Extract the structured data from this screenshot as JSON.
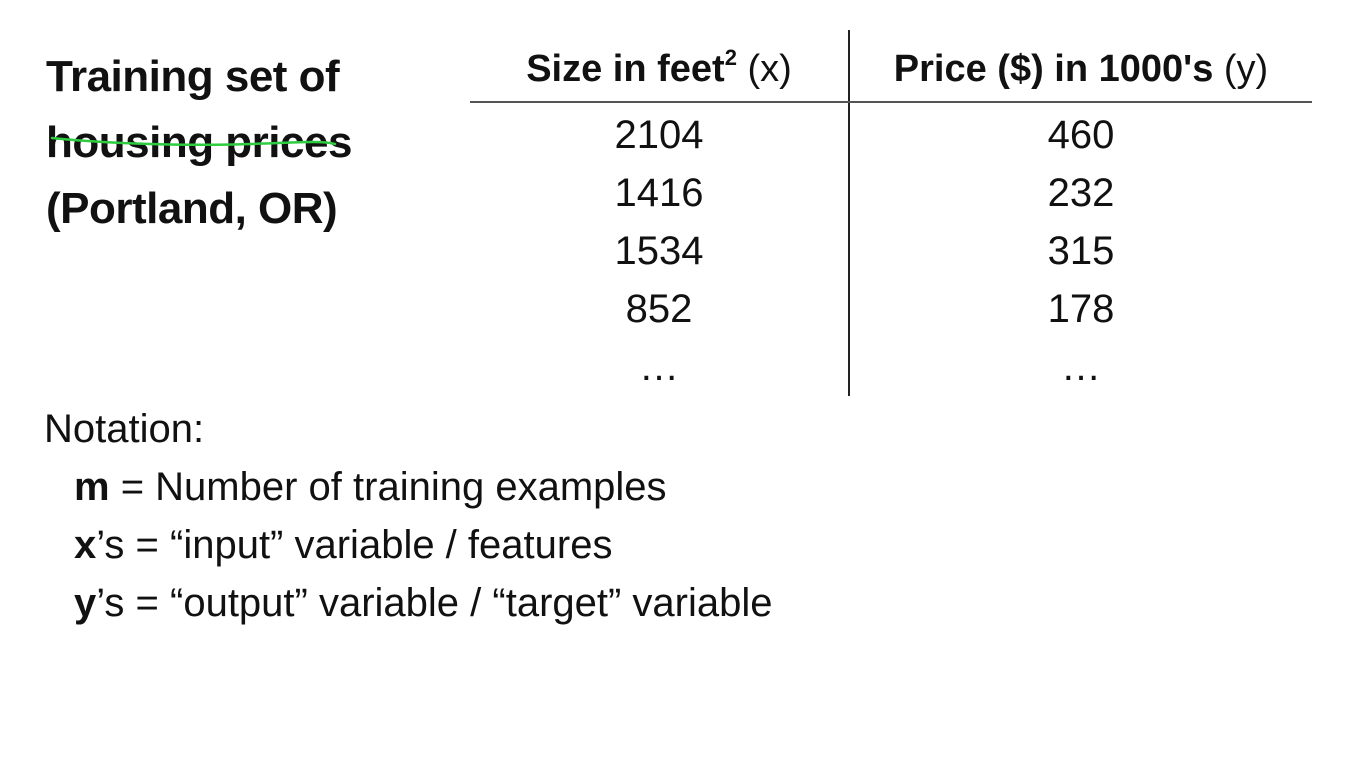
{
  "title": {
    "lines": [
      "Training set of",
      "housing prices",
      "(Portland, OR)"
    ]
  },
  "table": {
    "col_x": {
      "header_bold": "Size in feet",
      "header_sup": "2",
      "header_var": " (x)",
      "cells": [
        "2104",
        "1416",
        "1534",
        "852",
        "…"
      ]
    },
    "col_y": {
      "header_bold": "Price ($) in 1000's",
      "header_var": " (y)",
      "cells": [
        "460",
        "232",
        "315",
        "178",
        "…"
      ]
    }
  },
  "notation": {
    "heading": "Notation:",
    "rows": [
      {
        "symbol": "m",
        "text": " = Number of training examples"
      },
      {
        "symbol": "x",
        "text": "’s = “input” variable / features"
      },
      {
        "symbol": "y",
        "text": "’s = “output” variable / “target” variable"
      }
    ]
  },
  "colors": {
    "text": "#111111",
    "annotation": "#2ecc40",
    "rule": "#555555"
  }
}
